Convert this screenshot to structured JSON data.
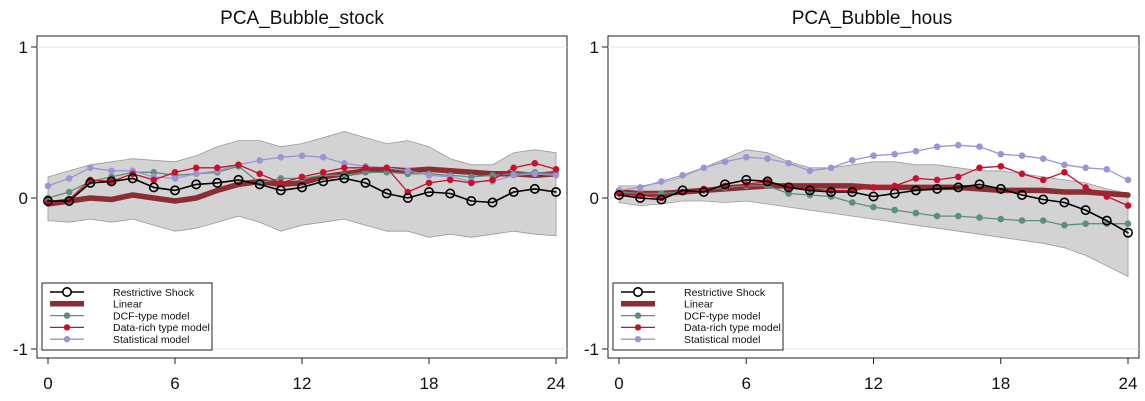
{
  "colors": {
    "restrictive": "#000000",
    "linear": "#8B2E33",
    "dcf": "#5E8E7E",
    "datarich": "#C8102E",
    "statistical": "#9B95D6",
    "band": "#D3D3D3",
    "grid": "#DDEAEA"
  },
  "legend_labels": [
    "Restrictive Shock",
    "Linear",
    "DCF-type model",
    "Data-rich type model",
    "Statistical model"
  ],
  "chart_data": [
    {
      "type": "line",
      "title": "PCA_Bubble_stock",
      "xlabel": "",
      "ylabel": "",
      "xlim": [
        0,
        24
      ],
      "ylim": [
        -1,
        1
      ],
      "xticks": [
        0,
        6,
        12,
        18,
        24
      ],
      "yticks": [
        -1,
        0,
        1
      ],
      "legend_position": "bottom-left",
      "band": {
        "x": [
          0,
          1,
          2,
          3,
          4,
          5,
          6,
          7,
          8,
          9,
          10,
          11,
          12,
          13,
          14,
          15,
          16,
          17,
          18,
          19,
          20,
          21,
          22,
          23,
          24
        ],
        "upper": [
          0.14,
          0.18,
          0.22,
          0.24,
          0.26,
          0.25,
          0.24,
          0.28,
          0.34,
          0.38,
          0.38,
          0.34,
          0.36,
          0.4,
          0.44,
          0.4,
          0.36,
          0.38,
          0.34,
          0.26,
          0.22,
          0.22,
          0.3,
          0.32,
          0.3
        ],
        "lower": [
          -0.15,
          -0.16,
          -0.14,
          -0.16,
          -0.14,
          -0.18,
          -0.22,
          -0.2,
          -0.16,
          -0.12,
          -0.16,
          -0.22,
          -0.18,
          -0.16,
          -0.14,
          -0.18,
          -0.22,
          -0.22,
          -0.26,
          -0.24,
          -0.26,
          -0.24,
          -0.22,
          -0.24,
          -0.25
        ]
      },
      "series": [
        {
          "name": "Restrictive Shock",
          "x": [
            0,
            1,
            2,
            3,
            4,
            5,
            6,
            7,
            8,
            9,
            10,
            11,
            12,
            13,
            14,
            15,
            16,
            17,
            18,
            19,
            20,
            21,
            22,
            23,
            24
          ],
          "values": [
            -0.02,
            -0.02,
            0.1,
            0.11,
            0.13,
            0.07,
            0.05,
            0.09,
            0.1,
            0.12,
            0.09,
            0.05,
            0.07,
            0.11,
            0.13,
            0.1,
            0.03,
            0.0,
            0.04,
            0.03,
            -0.02,
            -0.03,
            0.04,
            0.06,
            0.04
          ]
        },
        {
          "name": "Linear",
          "x": [
            0,
            1,
            2,
            3,
            4,
            5,
            6,
            7,
            8,
            9,
            10,
            11,
            12,
            13,
            14,
            15,
            16,
            17,
            18,
            19,
            20,
            21,
            22,
            23,
            24
          ],
          "values": [
            -0.04,
            -0.02,
            0.0,
            -0.01,
            0.02,
            0.0,
            -0.02,
            0.0,
            0.05,
            0.09,
            0.11,
            0.09,
            0.1,
            0.14,
            0.16,
            0.18,
            0.19,
            0.18,
            0.19,
            0.18,
            0.17,
            0.16,
            0.16,
            0.15,
            0.16
          ]
        },
        {
          "name": "DCF-type model",
          "x": [
            0,
            1,
            2,
            3,
            4,
            5,
            6,
            7,
            8,
            9,
            10,
            11,
            12,
            13,
            14,
            15,
            16,
            17,
            18,
            19,
            20,
            21,
            22,
            23,
            24
          ],
          "values": [
            0.0,
            0.04,
            0.11,
            0.14,
            0.17,
            0.17,
            0.15,
            0.16,
            0.17,
            0.21,
            0.1,
            0.13,
            0.13,
            0.15,
            0.15,
            0.17,
            0.17,
            0.16,
            0.16,
            0.15,
            0.14,
            0.15,
            0.16,
            0.17,
            0.16
          ]
        },
        {
          "name": "Data-rich type model",
          "x": [
            0,
            1,
            2,
            3,
            4,
            5,
            6,
            7,
            8,
            9,
            10,
            11,
            12,
            13,
            14,
            15,
            16,
            17,
            18,
            19,
            20,
            21,
            22,
            23,
            24
          ],
          "values": [
            -0.03,
            -0.01,
            0.12,
            0.11,
            0.16,
            0.12,
            0.17,
            0.2,
            0.2,
            0.22,
            0.16,
            0.1,
            0.14,
            0.17,
            0.2,
            0.2,
            0.2,
            0.04,
            0.1,
            0.12,
            0.1,
            0.12,
            0.2,
            0.23,
            0.19
          ]
        },
        {
          "name": "Statistical model",
          "x": [
            0,
            1,
            2,
            3,
            4,
            5,
            6,
            7,
            8,
            9,
            10,
            11,
            12,
            13,
            14,
            15,
            16,
            17,
            18,
            19,
            20,
            21,
            22,
            23,
            24
          ],
          "values": [
            0.08,
            0.13,
            0.2,
            0.18,
            0.18,
            0.14,
            0.13,
            0.16,
            0.18,
            0.22,
            0.25,
            0.27,
            0.28,
            0.27,
            0.23,
            0.21,
            0.2,
            0.18,
            0.15,
            0.14,
            0.11,
            0.11,
            0.15,
            0.16,
            0.15
          ]
        }
      ]
    },
    {
      "type": "line",
      "title": "PCA_Bubble_hous",
      "xlabel": "",
      "ylabel": "",
      "xlim": [
        0,
        24
      ],
      "ylim": [
        -1,
        1
      ],
      "xticks": [
        0,
        6,
        12,
        18,
        24
      ],
      "yticks": [
        -1,
        0,
        1
      ],
      "legend_position": "bottom-left",
      "band": {
        "x": [
          0,
          1,
          2,
          3,
          4,
          5,
          6,
          7,
          8,
          9,
          10,
          11,
          12,
          13,
          14,
          15,
          16,
          17,
          18,
          19,
          20,
          21,
          22,
          23,
          24
        ],
        "upper": [
          0.08,
          0.08,
          0.1,
          0.14,
          0.2,
          0.26,
          0.32,
          0.3,
          0.24,
          0.2,
          0.2,
          0.22,
          0.24,
          0.24,
          0.22,
          0.22,
          0.2,
          0.18,
          0.18,
          0.16,
          0.14,
          0.12,
          0.1,
          0.06,
          0.03
        ],
        "lower": [
          -0.03,
          -0.05,
          -0.04,
          -0.02,
          -0.02,
          -0.03,
          -0.02,
          -0.04,
          -0.06,
          -0.08,
          -0.1,
          -0.12,
          -0.14,
          -0.16,
          -0.18,
          -0.2,
          -0.22,
          -0.24,
          -0.26,
          -0.28,
          -0.3,
          -0.33,
          -0.38,
          -0.45,
          -0.52
        ]
      },
      "series": [
        {
          "name": "Restrictive Shock",
          "x": [
            0,
            1,
            2,
            3,
            4,
            5,
            6,
            7,
            8,
            9,
            10,
            11,
            12,
            13,
            14,
            15,
            16,
            17,
            18,
            19,
            20,
            21,
            22,
            23,
            24
          ],
          "values": [
            0.02,
            0.0,
            -0.01,
            0.05,
            0.04,
            0.09,
            0.12,
            0.11,
            0.07,
            0.05,
            0.04,
            0.04,
            0.01,
            0.03,
            0.05,
            0.06,
            0.07,
            0.09,
            0.06,
            0.02,
            -0.01,
            -0.03,
            -0.08,
            -0.15,
            -0.23
          ]
        },
        {
          "name": "Linear",
          "x": [
            0,
            1,
            2,
            3,
            4,
            5,
            6,
            7,
            8,
            9,
            10,
            11,
            12,
            13,
            14,
            15,
            16,
            17,
            18,
            19,
            20,
            21,
            22,
            23,
            24
          ],
          "values": [
            0.04,
            0.03,
            0.03,
            0.04,
            0.05,
            0.06,
            0.07,
            0.08,
            0.08,
            0.08,
            0.08,
            0.08,
            0.07,
            0.07,
            0.07,
            0.07,
            0.07,
            0.06,
            0.05,
            0.05,
            0.05,
            0.04,
            0.04,
            0.03,
            0.02
          ]
        },
        {
          "name": "DCF-type model",
          "x": [
            0,
            1,
            2,
            3,
            4,
            5,
            6,
            7,
            8,
            9,
            10,
            11,
            12,
            13,
            14,
            15,
            16,
            17,
            18,
            19,
            20,
            21,
            22,
            23,
            24
          ],
          "values": [
            0.04,
            0.03,
            0.03,
            0.04,
            0.05,
            0.07,
            0.08,
            0.08,
            0.03,
            0.02,
            0.01,
            -0.03,
            -0.06,
            -0.08,
            -0.1,
            -0.12,
            -0.12,
            -0.13,
            -0.14,
            -0.15,
            -0.15,
            -0.18,
            -0.17,
            -0.17,
            -0.17
          ]
        },
        {
          "name": "Data-rich type model",
          "x": [
            0,
            1,
            2,
            3,
            4,
            5,
            6,
            7,
            8,
            9,
            10,
            11,
            12,
            13,
            14,
            15,
            16,
            17,
            18,
            19,
            20,
            21,
            22,
            23,
            24
          ],
          "values": [
            0.03,
            0.02,
            0.0,
            0.04,
            0.06,
            0.08,
            0.09,
            0.11,
            0.07,
            0.06,
            0.05,
            0.05,
            0.07,
            0.08,
            0.13,
            0.12,
            0.14,
            0.2,
            0.21,
            0.16,
            0.12,
            0.17,
            0.07,
            0.01,
            -0.05
          ]
        },
        {
          "name": "Statistical model",
          "x": [
            0,
            1,
            2,
            3,
            4,
            5,
            6,
            7,
            8,
            9,
            10,
            11,
            12,
            13,
            14,
            15,
            16,
            17,
            18,
            19,
            20,
            21,
            22,
            23,
            24
          ],
          "values": [
            0.05,
            0.07,
            0.11,
            0.15,
            0.2,
            0.24,
            0.27,
            0.26,
            0.23,
            0.18,
            0.2,
            0.25,
            0.28,
            0.29,
            0.31,
            0.34,
            0.35,
            0.34,
            0.29,
            0.28,
            0.26,
            0.22,
            0.2,
            0.19,
            0.12
          ]
        }
      ]
    }
  ]
}
